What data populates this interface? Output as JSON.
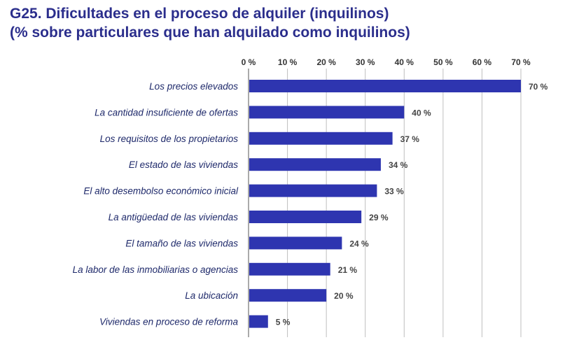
{
  "chart_data": {
    "type": "bar",
    "orientation": "horizontal",
    "title": "G25. Dificultades en el proceso de alquiler (inquilinos)",
    "subtitle": "(% sobre particulares que han alquilado como inquilinos)",
    "categories": [
      "Los precios elevados",
      "La cantidad insuficiente de ofertas",
      "Los requisitos de los propietarios",
      "El estado de las viviendas",
      "El alto desembolso económico inicial",
      "La antigüedad de las viviendas",
      "El tamaño de las viviendas",
      "La labor de las inmobiliarias o agencias",
      "La ubicación",
      "Viviendas en proceso de reforma"
    ],
    "values": [
      70,
      40,
      37,
      34,
      33,
      29,
      24,
      21,
      20,
      5
    ],
    "value_labels": [
      "70 %",
      "40 %",
      "37 %",
      "34 %",
      "33 %",
      "29 %",
      "24 %",
      "21 %",
      "20 %",
      "5 %"
    ],
    "x_ticks": [
      0,
      10,
      20,
      30,
      40,
      50,
      60,
      70
    ],
    "x_tick_labels": [
      "0 %",
      "10 %",
      "20 %",
      "30 %",
      "40 %",
      "50 %",
      "60 %",
      "70 %"
    ],
    "xlim": [
      0,
      70
    ],
    "xlabel": "",
    "ylabel": "",
    "axis_position": "top",
    "grid": true,
    "legend": "none",
    "bar_color": "#2e35b0",
    "grid_color": "#bfbfbf"
  }
}
